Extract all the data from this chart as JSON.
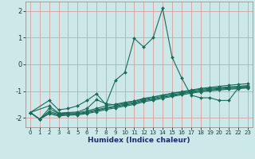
{
  "xlabel": "Humidex (Indice chaleur)",
  "bg_color": "#cce8e8",
  "grid_color": "#d8a0a0",
  "line_color": "#1a6b5a",
  "xlim": [
    -0.5,
    23.5
  ],
  "ylim": [
    -2.35,
    2.35
  ],
  "xticks": [
    0,
    1,
    2,
    3,
    4,
    5,
    6,
    7,
    8,
    9,
    10,
    11,
    12,
    13,
    14,
    15,
    16,
    17,
    18,
    19,
    20,
    21,
    22,
    23
  ],
  "yticks": [
    -2,
    -1,
    0,
    1,
    2
  ],
  "lines": [
    {
      "x": [
        0,
        2,
        3,
        4,
        5,
        6,
        7,
        8,
        9,
        10,
        11,
        12,
        13,
        14,
        15,
        16,
        17,
        18,
        19,
        20,
        21,
        22,
        23
      ],
      "y": [
        -1.8,
        -1.35,
        -1.7,
        -1.65,
        -1.55,
        -1.35,
        -1.1,
        -1.5,
        -0.6,
        -0.3,
        0.97,
        0.65,
        1.0,
        2.1,
        0.27,
        -0.5,
        -1.15,
        -1.25,
        -1.25,
        -1.35,
        -1.35,
        -0.88,
        -0.85
      ]
    },
    {
      "x": [
        0,
        2,
        3,
        4,
        5,
        6,
        7,
        8,
        9,
        10,
        11,
        12,
        13,
        14,
        15,
        16,
        17,
        18,
        19,
        20,
        21,
        22,
        23
      ],
      "y": [
        -1.8,
        -1.55,
        -1.82,
        -1.8,
        -1.78,
        -1.65,
        -1.32,
        -1.47,
        -1.52,
        -1.45,
        -1.38,
        -1.3,
        -1.22,
        -1.15,
        -1.08,
        -1.02,
        -0.96,
        -0.9,
        -0.86,
        -0.82,
        -0.78,
        -0.75,
        -0.72
      ]
    },
    {
      "x": [
        0,
        1,
        2,
        3,
        4,
        5,
        6,
        7,
        8,
        9,
        10,
        11,
        12,
        13,
        14,
        15,
        16,
        17,
        18,
        19,
        20,
        21,
        22,
        23
      ],
      "y": [
        -1.8,
        -2.05,
        -1.75,
        -1.87,
        -1.85,
        -1.84,
        -1.78,
        -1.7,
        -1.62,
        -1.56,
        -1.49,
        -1.43,
        -1.33,
        -1.27,
        -1.2,
        -1.14,
        -1.08,
        -1.02,
        -0.97,
        -0.93,
        -0.9,
        -0.87,
        -0.85,
        -0.82
      ]
    },
    {
      "x": [
        0,
        1,
        2,
        3,
        4,
        5,
        6,
        7,
        8,
        9,
        10,
        11,
        12,
        13,
        14,
        15,
        16,
        17,
        18,
        19,
        20,
        21,
        22,
        23
      ],
      "y": [
        -1.8,
        -2.05,
        -1.8,
        -1.9,
        -1.87,
        -1.86,
        -1.81,
        -1.73,
        -1.65,
        -1.59,
        -1.52,
        -1.46,
        -1.36,
        -1.3,
        -1.23,
        -1.17,
        -1.1,
        -1.04,
        -0.99,
        -0.96,
        -0.93,
        -0.9,
        -0.88,
        -0.85
      ]
    },
    {
      "x": [
        0,
        1,
        2,
        3,
        4,
        5,
        6,
        7,
        8,
        9,
        10,
        11,
        12,
        13,
        14,
        15,
        16,
        17,
        18,
        19,
        20,
        21,
        22,
        23
      ],
      "y": [
        -1.8,
        -2.05,
        -1.85,
        -1.93,
        -1.9,
        -1.89,
        -1.84,
        -1.77,
        -1.69,
        -1.63,
        -1.56,
        -1.5,
        -1.4,
        -1.34,
        -1.27,
        -1.2,
        -1.14,
        -1.08,
        -1.03,
        -0.99,
        -0.96,
        -0.93,
        -0.91,
        -0.88
      ]
    },
    {
      "x": [
        0,
        1,
        2,
        3,
        4,
        5,
        6,
        7,
        8,
        9,
        10,
        11,
        12,
        13,
        14,
        15,
        16,
        17,
        18,
        19,
        20,
        21,
        22,
        23
      ],
      "y": [
        -1.8,
        -2.05,
        -1.65,
        -1.84,
        -1.82,
        -1.81,
        -1.74,
        -1.65,
        -1.55,
        -1.49,
        -1.42,
        -1.37,
        -1.27,
        -1.22,
        -1.15,
        -1.09,
        -1.04,
        -0.98,
        -0.93,
        -0.9,
        -0.87,
        -0.84,
        -0.82,
        -0.79
      ]
    }
  ]
}
